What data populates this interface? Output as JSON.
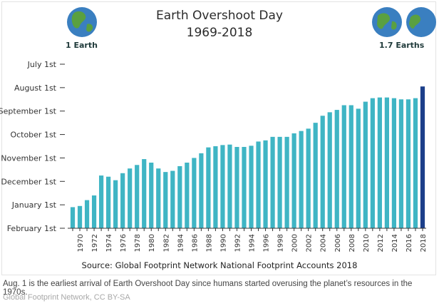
{
  "title": "Earth Overshoot Day",
  "subtitle": "1969-2018",
  "left_badge": {
    "label": "1 Earth",
    "icon": "earth-globe-icon"
  },
  "right_badge": {
    "label": "1.7 Earths",
    "icon": "earth-globe-icon"
  },
  "source": "Source: Global Footprint Network National Footprint Accounts 2018",
  "caption": "Aug. 1 is the earliest arrival of Earth Overshoot Day since humans started overusing the planet’s resources in the 1970s.",
  "credit": "Global Footprint Network, CC BY-SA",
  "colors": {
    "bar": "#3fb5c4",
    "highlight": "#1c3f8a",
    "globe_water": "#3a7fc0",
    "globe_land": "#5aa040"
  },
  "chart_data": {
    "type": "bar",
    "title": "Earth Overshoot Day",
    "subtitle": "1969-2018",
    "x_axis": "year",
    "y_axis_labels": [
      "July 1st",
      "August 1st",
      "September 1st",
      "October 1st",
      "November 1st",
      "December 1st",
      "January 1st",
      "February 1st"
    ],
    "y_unit": "months after July 1st (0 = July 1st, 7 = February 1st)",
    "ylim": [
      0,
      7
    ],
    "x_tick_labels": [
      "1970",
      "1972",
      "1974",
      "1976",
      "1978",
      "1980",
      "1982",
      "1984",
      "1986",
      "1988",
      "1990",
      "1992",
      "1994",
      "1996",
      "1998",
      "2000",
      "2002",
      "2004",
      "2006",
      "2008",
      "2010",
      "2012",
      "2014",
      "2016",
      "2018"
    ],
    "years": [
      1969,
      1970,
      1971,
      1972,
      1973,
      1974,
      1975,
      1976,
      1977,
      1978,
      1979,
      1980,
      1981,
      1982,
      1983,
      1984,
      1985,
      1986,
      1987,
      1988,
      1989,
      1990,
      1991,
      1992,
      1993,
      1994,
      1995,
      1996,
      1997,
      1998,
      1999,
      2000,
      2001,
      2002,
      2003,
      2004,
      2005,
      2006,
      2007,
      2008,
      2009,
      2010,
      2011,
      2012,
      2013,
      2014,
      2015,
      2016,
      2017,
      2018
    ],
    "values": [
      6.1,
      6.05,
      5.8,
      5.6,
      4.75,
      4.8,
      4.95,
      4.65,
      4.45,
      4.3,
      4.05,
      4.2,
      4.45,
      4.6,
      4.55,
      4.35,
      4.2,
      4.0,
      3.8,
      3.55,
      3.5,
      3.45,
      3.43,
      3.53,
      3.53,
      3.48,
      3.3,
      3.25,
      3.1,
      3.1,
      3.1,
      2.95,
      2.85,
      2.75,
      2.5,
      2.2,
      2.05,
      1.95,
      1.75,
      1.75,
      1.9,
      1.6,
      1.45,
      1.42,
      1.42,
      1.45,
      1.5,
      1.5,
      1.45,
      0.95
    ],
    "highlight_year": 2018,
    "grid": false,
    "legend": "none"
  }
}
